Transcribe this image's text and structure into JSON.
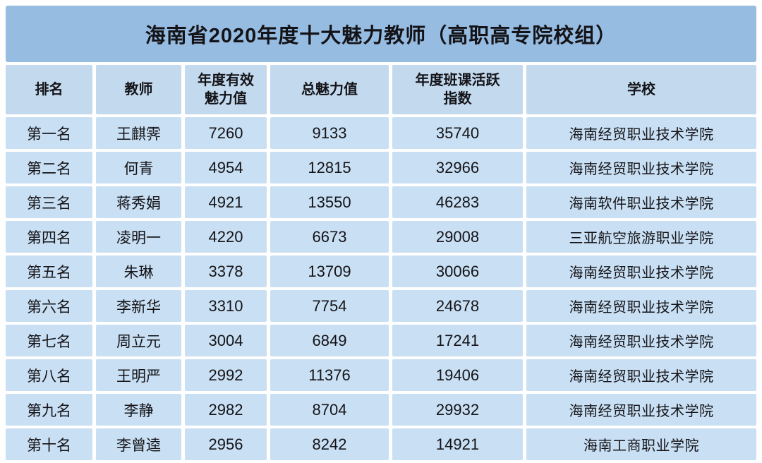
{
  "chart_data": {
    "type": "table",
    "title": "海南省2020年度十大魅力教师（高职高专院校组）",
    "columns": [
      "排名",
      "教师",
      "年度有效\n魅力值",
      "总魅力值",
      "年度班课活跃\n指数",
      "学校"
    ],
    "rows": [
      {
        "rank": "第一名",
        "teacher": "王麒霁",
        "annual_charm": "7260",
        "total_charm": "9133",
        "activity_index": "35740",
        "school": "海南经贸职业技术学院"
      },
      {
        "rank": "第二名",
        "teacher": "何青",
        "annual_charm": "4954",
        "total_charm": "12815",
        "activity_index": "32966",
        "school": "海南经贸职业技术学院"
      },
      {
        "rank": "第三名",
        "teacher": "蒋秀娟",
        "annual_charm": "4921",
        "total_charm": "13550",
        "activity_index": "46283",
        "school": "海南软件职业技术学院"
      },
      {
        "rank": "第四名",
        "teacher": "凌明一",
        "annual_charm": "4220",
        "total_charm": "6673",
        "activity_index": "29008",
        "school": "三亚航空旅游职业学院"
      },
      {
        "rank": "第五名",
        "teacher": "朱琳",
        "annual_charm": "3378",
        "total_charm": "13709",
        "activity_index": "30066",
        "school": "海南经贸职业技术学院"
      },
      {
        "rank": "第六名",
        "teacher": "李新华",
        "annual_charm": "3310",
        "total_charm": "7754",
        "activity_index": "24678",
        "school": "海南经贸职业技术学院"
      },
      {
        "rank": "第七名",
        "teacher": "周立元",
        "annual_charm": "3004",
        "total_charm": "6849",
        "activity_index": "17241",
        "school": "海南经贸职业技术学院"
      },
      {
        "rank": "第八名",
        "teacher": "王明严",
        "annual_charm": "2992",
        "total_charm": "11376",
        "activity_index": "19406",
        "school": "海南经贸职业技术学院"
      },
      {
        "rank": "第九名",
        "teacher": "李静",
        "annual_charm": "2982",
        "total_charm": "8704",
        "activity_index": "29932",
        "school": "海南经贸职业技术学院"
      },
      {
        "rank": "第十名",
        "teacher": "李曾逵",
        "annual_charm": "2956",
        "total_charm": "8242",
        "activity_index": "14921",
        "school": "海南工商职业学院"
      }
    ]
  },
  "colors": {
    "title_bg": "#97BCE2",
    "header_bg": "#C3D9EE",
    "cell_bg": "#C9DFF3",
    "text": "#141418"
  }
}
